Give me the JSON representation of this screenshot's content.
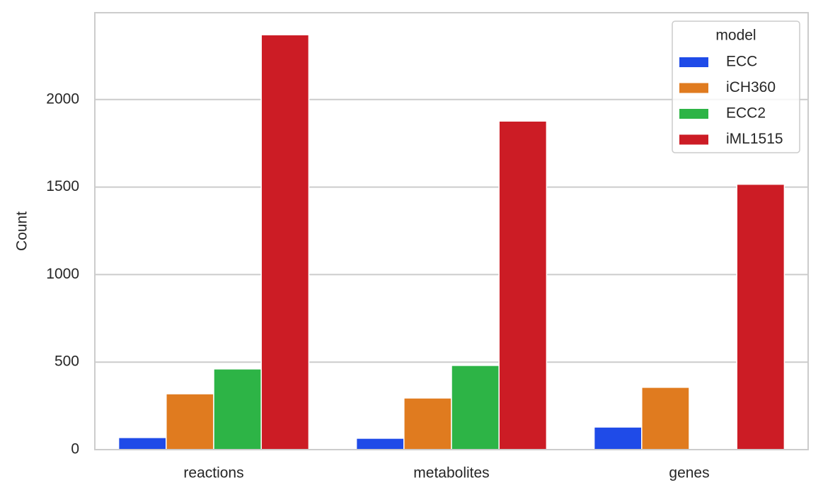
{
  "chart_data": {
    "type": "bar",
    "y_label": "Count",
    "categories": [
      "reactions",
      "metabolites",
      "genes"
    ],
    "legend_title": "model",
    "legend_position": "upper right",
    "grid": true,
    "ylim": [
      0,
      2496
    ],
    "yticks": [
      0,
      500,
      1000,
      1500,
      2000
    ],
    "series": [
      {
        "name": "ECC",
        "color": "#1f4be8",
        "values": [
          69,
          65,
          129
        ]
      },
      {
        "name": "iCH360",
        "color": "#e07b1f",
        "values": [
          319,
          295,
          356
        ]
      },
      {
        "name": "ECC2",
        "color": "#2db446",
        "values": [
          461,
          481,
          0
        ]
      },
      {
        "name": "iML1515",
        "color": "#cc1c25",
        "values": [
          2370,
          1877,
          1516
        ]
      }
    ]
  }
}
